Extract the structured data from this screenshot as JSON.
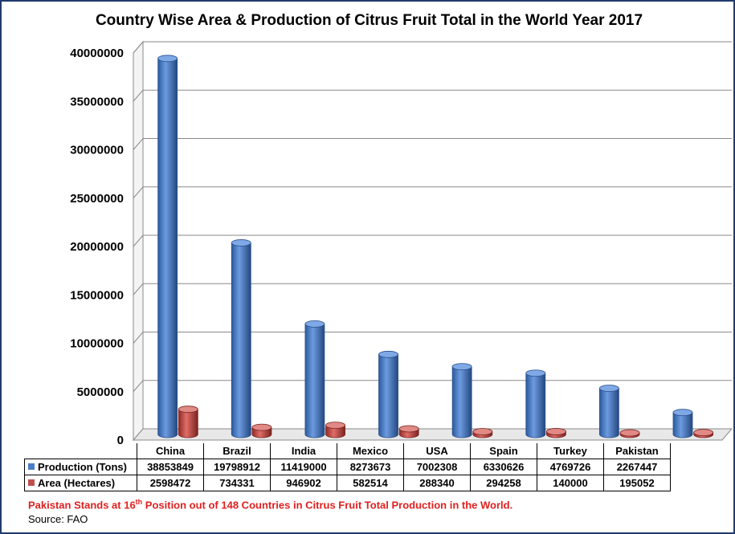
{
  "chart_data": {
    "type": "bar",
    "title": "Country Wise Area & Production of Citrus Fruit Total in the World Year 2017",
    "categories": [
      "China",
      "Brazil",
      "India",
      "Mexico",
      "USA",
      "Spain",
      "Turkey",
      "Pakistan"
    ],
    "series": [
      {
        "name": "Production (Tons)",
        "color": "#4a7ec7",
        "values": [
          38853849,
          19798912,
          11419000,
          8273673,
          7002308,
          6330626,
          4769726,
          2267447
        ],
        "labels": [
          "38853849",
          "19798912",
          "11419000",
          "8273673",
          "7002308",
          "6330626",
          "4769726",
          "2267447"
        ]
      },
      {
        "name": "Area (Hectares)",
        "color": "#c0504d",
        "values": [
          2598472,
          734331,
          946902,
          582514,
          288340,
          294258,
          140000,
          195052
        ],
        "labels": [
          "2598472",
          "734331",
          "946902",
          "582514",
          "288340",
          "294258",
          "140000",
          "195052"
        ]
      }
    ],
    "ylim": [
      0,
      40000000
    ],
    "yticks": [
      "0",
      "5000000",
      "10000000",
      "15000000",
      "20000000",
      "25000000",
      "30000000",
      "35000000",
      "40000000"
    ],
    "grid": true,
    "legend": "data table"
  },
  "footnote": {
    "before": "Pakistan Stands at 16",
    "sup": "th",
    "after": " Position out of 148 Countries in Citrus Fruit Total Production in the World.",
    "color": "#e02020"
  },
  "source": "Source: FAO"
}
